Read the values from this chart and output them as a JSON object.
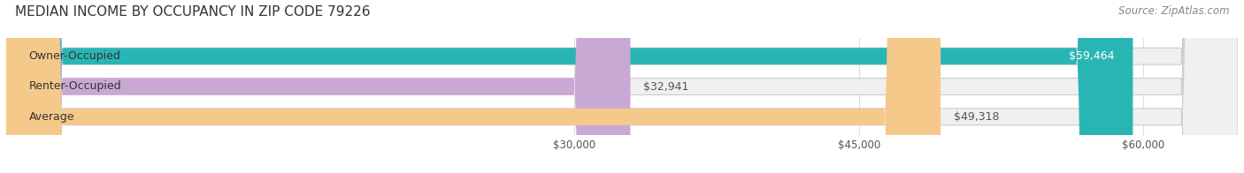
{
  "title": "MEDIAN INCOME BY OCCUPANCY IN ZIP CODE 79226",
  "source": "Source: ZipAtlas.com",
  "categories": [
    "Owner-Occupied",
    "Renter-Occupied",
    "Average"
  ],
  "values": [
    59464,
    32941,
    49318
  ],
  "bar_colors": [
    "#2ab5b5",
    "#c9a8d4",
    "#f5c98a"
  ],
  "bar_bg_color": "#f0f0f0",
  "label_color": "#555555",
  "value_labels": [
    "$59,464",
    "$32,941",
    "$49,318"
  ],
  "xmin": 0,
  "xmax": 65000,
  "xticks": [
    30000,
    45000,
    60000
  ],
  "xtick_labels": [
    "$30,000",
    "$45,000",
    "$60,000"
  ],
  "background_color": "#ffffff",
  "title_fontsize": 11,
  "source_fontsize": 8.5,
  "bar_label_fontsize": 9,
  "value_label_fontsize": 9
}
